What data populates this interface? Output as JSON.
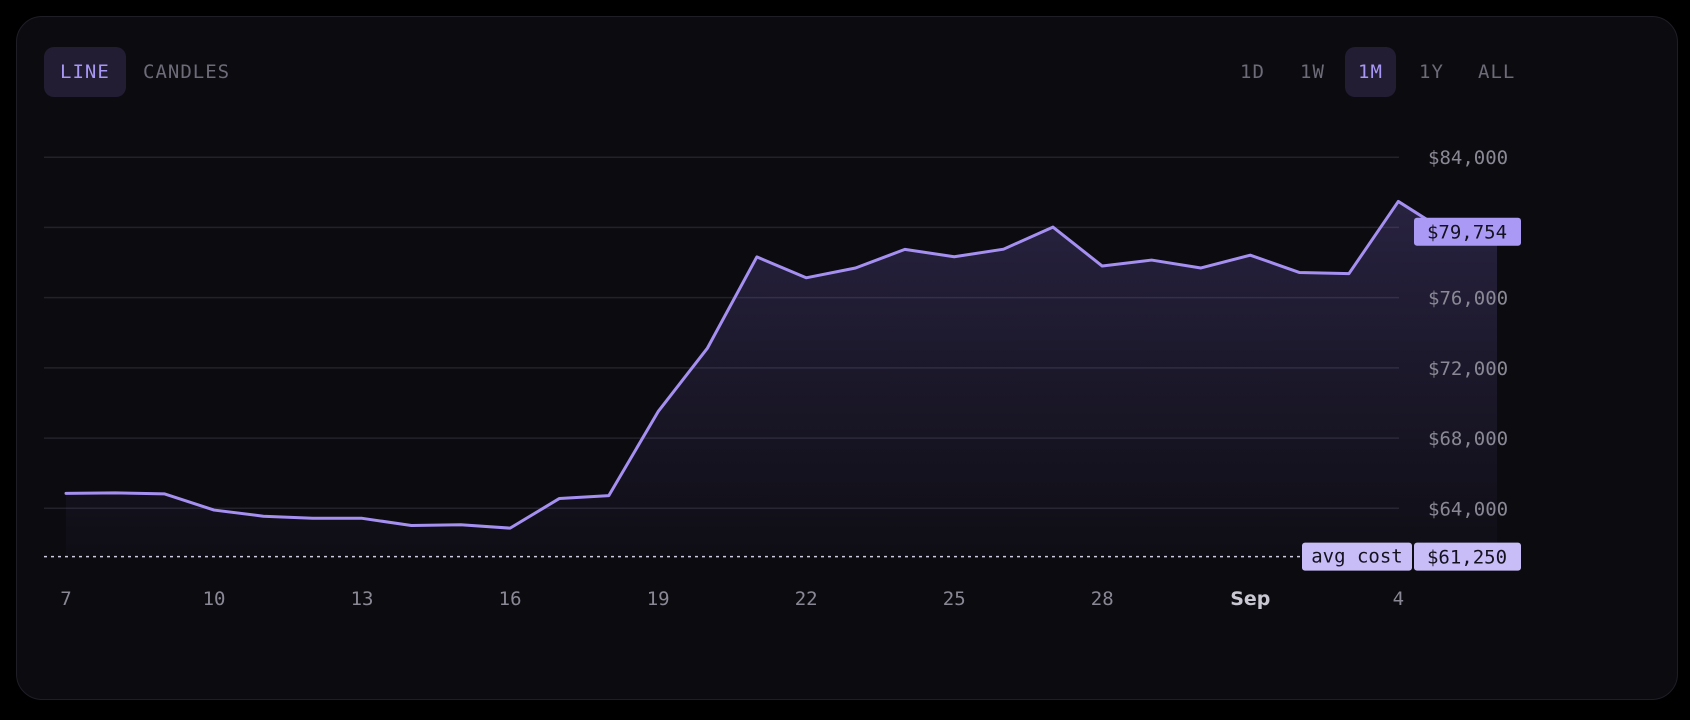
{
  "toggle": {
    "line_label": "LINE",
    "candles_label": "CANDLES"
  },
  "ranges": [
    {
      "label": "1D",
      "active": false
    },
    {
      "label": "1W",
      "active": false
    },
    {
      "label": "1M",
      "active": true
    },
    {
      "label": "1Y",
      "active": false
    },
    {
      "label": "ALL",
      "active": false
    }
  ],
  "colors": {
    "accent": "#a08cf0",
    "line": "#a590f2",
    "grid": "#23222a",
    "tag_bg": "#ab9af5",
    "avg_tag_bg": "#c9bdf7"
  },
  "chart_data": {
    "type": "area",
    "title": "",
    "xlabel": "",
    "ylabel": "",
    "ylim": [
      61250,
      84000
    ],
    "y_ticks": [
      64000,
      68000,
      72000,
      76000,
      84000
    ],
    "y_tick_labels": [
      "$64,000",
      "$68,000",
      "$72,000",
      "$76,000",
      "$84,000"
    ],
    "x_tick_labels": [
      {
        "day": 7,
        "label": "7",
        "month": false
      },
      {
        "day": 10,
        "label": "10",
        "month": false
      },
      {
        "day": 13,
        "label": "13",
        "month": false
      },
      {
        "day": 16,
        "label": "16",
        "month": false
      },
      {
        "day": 19,
        "label": "19",
        "month": false
      },
      {
        "day": 22,
        "label": "22",
        "month": false
      },
      {
        "day": 25,
        "label": "25",
        "month": false
      },
      {
        "day": 28,
        "label": "28",
        "month": false
      },
      {
        "day": 31,
        "label": "Sep",
        "month": true
      },
      {
        "day": 34,
        "label": "4",
        "month": false
      }
    ],
    "series": [
      {
        "x": [
          7,
          8,
          9,
          10,
          11,
          12,
          13,
          14,
          15,
          16,
          17,
          18,
          19,
          20,
          21,
          22,
          23,
          24,
          25,
          26,
          27,
          28,
          29,
          30,
          31,
          32,
          33,
          34,
          35,
          36
        ],
        "values": [
          64850,
          64880,
          64820,
          63900,
          63550,
          63430,
          63430,
          63020,
          63060,
          62870,
          64560,
          64720,
          69510,
          73130,
          78320,
          77130,
          77690,
          78750,
          78330,
          78760,
          80020,
          77800,
          78140,
          77690,
          78420,
          77430,
          77370,
          81480,
          79700,
          79754
        ]
      }
    ],
    "current_price_label": "$79,754",
    "current_price": 79754,
    "avg_cost_label": "avg cost",
    "avg_cost_value_label": "$61,250",
    "avg_cost": 61250,
    "grid": true
  }
}
